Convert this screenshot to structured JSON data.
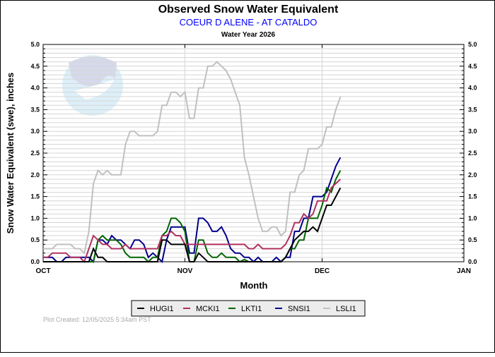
{
  "logo": {
    "text": "NOAA"
  },
  "footer": {
    "plot_created": "Plot Created: 12/05/2025 5:34am PST"
  },
  "chart_data": {
    "type": "line",
    "title": "Observed Snow Water Equivalent",
    "subtitle": "COEUR D ALENE - AT CATALDO",
    "subtitle2": "Water Year 2026",
    "xlabel": "Month",
    "ylabel": "Snow Water Equivalent (swe),  inches",
    "ylim": [
      0,
      5
    ],
    "yticks": [
      "0.0",
      "0.5",
      "1.0",
      "1.5",
      "2.0",
      "2.5",
      "3.0",
      "3.5",
      "4.0",
      "4.5",
      "5.0"
    ],
    "xticks": [
      {
        "label": "OCT",
        "day": 0
      },
      {
        "label": "NOV",
        "day": 31
      },
      {
        "label": "DEC",
        "day": 61
      },
      {
        "label": "JAN",
        "day": 92
      }
    ],
    "x_unit": "days since Oct 1",
    "grid": true,
    "legend_position": "bottom-center",
    "series": [
      {
        "name": "HUGI1",
        "color": "#000000",
        "values": [
          0,
          0,
          0,
          0,
          0,
          0,
          0,
          0,
          0,
          0,
          0,
          0.3,
          0.1,
          0.1,
          0,
          0,
          0,
          0,
          0,
          0,
          0,
          0,
          0,
          0,
          0,
          0,
          0.5,
          0.5,
          0.4,
          0.4,
          0.4,
          0.4,
          0,
          0,
          0.2,
          0.1,
          0,
          0,
          0,
          0,
          0,
          0,
          0,
          0,
          0,
          0,
          0,
          0,
          0,
          0,
          0,
          0,
          0,
          0.1,
          0.3,
          0.5,
          0.6,
          0.7,
          0.7,
          0.8,
          0.7,
          1.0,
          1.3,
          1.3,
          1.5,
          1.7
        ]
      },
      {
        "name": "MCKI1",
        "color": "#b03060",
        "values": [
          0.1,
          0.1,
          0.2,
          0.2,
          0.2,
          0.2,
          0.1,
          0.1,
          0.1,
          0,
          0.3,
          0.6,
          0.5,
          0.4,
          0.4,
          0.3,
          0.3,
          0.3,
          0.4,
          0.3,
          0.3,
          0.3,
          0.3,
          0.3,
          0.3,
          0.3,
          0.6,
          0.6,
          0.7,
          0.6,
          0.6,
          0.4,
          0.4,
          0.4,
          0.4,
          0.4,
          0.4,
          0.4,
          0.4,
          0.4,
          0.4,
          0.4,
          0.4,
          0.4,
          0.4,
          0.3,
          0.3,
          0.4,
          0.3,
          0.3,
          0.3,
          0.3,
          0.3,
          0.4,
          0.6,
          0.9,
          0.9,
          1.1,
          1.0,
          1.1,
          1.4,
          1.4,
          1.4,
          1.7,
          1.8,
          1.9
        ]
      },
      {
        "name": "LKTI1",
        "color": "#006400",
        "values": [
          0,
          0,
          0,
          0,
          0,
          0,
          0,
          0,
          0,
          0,
          0,
          0,
          0.5,
          0.6,
          0.5,
          0.5,
          0.5,
          0.4,
          0.2,
          0.1,
          0.1,
          0.1,
          0.1,
          0,
          0.1,
          0.1,
          0.6,
          0.7,
          1.0,
          1.0,
          0.9,
          0.7,
          0,
          0,
          0.5,
          0.5,
          0.2,
          0.1,
          0.1,
          0.2,
          0.1,
          0.1,
          0.1,
          0,
          0.05,
          0,
          0,
          0,
          0,
          0,
          0,
          0,
          0,
          0.1,
          0.3,
          0.3,
          0.5,
          0.5,
          1.0,
          1.0,
          1.0,
          1.3,
          1.7,
          1.6,
          1.9,
          2.1
        ]
      },
      {
        "name": "SNSI1",
        "color": "#00008b",
        "values": [
          0.1,
          0.1,
          0.1,
          0,
          0,
          0.1,
          0.1,
          0.1,
          0.1,
          0.1,
          0.1,
          0,
          0.5,
          0.5,
          0.4,
          0.6,
          0.5,
          0.5,
          0.4,
          0.3,
          0.5,
          0.5,
          0.4,
          0.1,
          0.2,
          0.1,
          0,
          0.5,
          0.8,
          0.8,
          0.8,
          0.8,
          0.2,
          0.2,
          1.0,
          1.0,
          0.9,
          0.7,
          0.7,
          0.8,
          0.6,
          0.3,
          0.2,
          0.2,
          0.1,
          0.1,
          0,
          0.1,
          0,
          0,
          0,
          0.1,
          0,
          0.1,
          0.1,
          0.7,
          0.7,
          1.0,
          1.0,
          1.5,
          1.5,
          1.5,
          1.6,
          1.9,
          2.2,
          2.4
        ]
      },
      {
        "name": "LSLI1",
        "color": "#c0c0c0",
        "values": [
          0.3,
          0.3,
          0.3,
          0.4,
          0.4,
          0.4,
          0.4,
          0.3,
          0.3,
          0.2,
          0.7,
          1.8,
          2.1,
          2.0,
          2.1,
          2.0,
          2.0,
          2.0,
          2.7,
          3.0,
          3.0,
          2.9,
          2.9,
          2.9,
          2.9,
          3.0,
          3.6,
          3.6,
          3.9,
          3.9,
          3.8,
          3.9,
          3.3,
          3.3,
          4.0,
          4.0,
          4.5,
          4.5,
          4.6,
          4.5,
          4.4,
          4.2,
          3.9,
          3.6,
          2.4,
          2.0,
          1.5,
          1.0,
          0.7,
          0.7,
          0.8,
          0.8,
          0.6,
          0.7,
          1.6,
          1.6,
          2.0,
          2.1,
          2.6,
          2.6,
          2.6,
          2.7,
          3.1,
          3.1,
          3.5,
          3.8
        ]
      }
    ]
  }
}
